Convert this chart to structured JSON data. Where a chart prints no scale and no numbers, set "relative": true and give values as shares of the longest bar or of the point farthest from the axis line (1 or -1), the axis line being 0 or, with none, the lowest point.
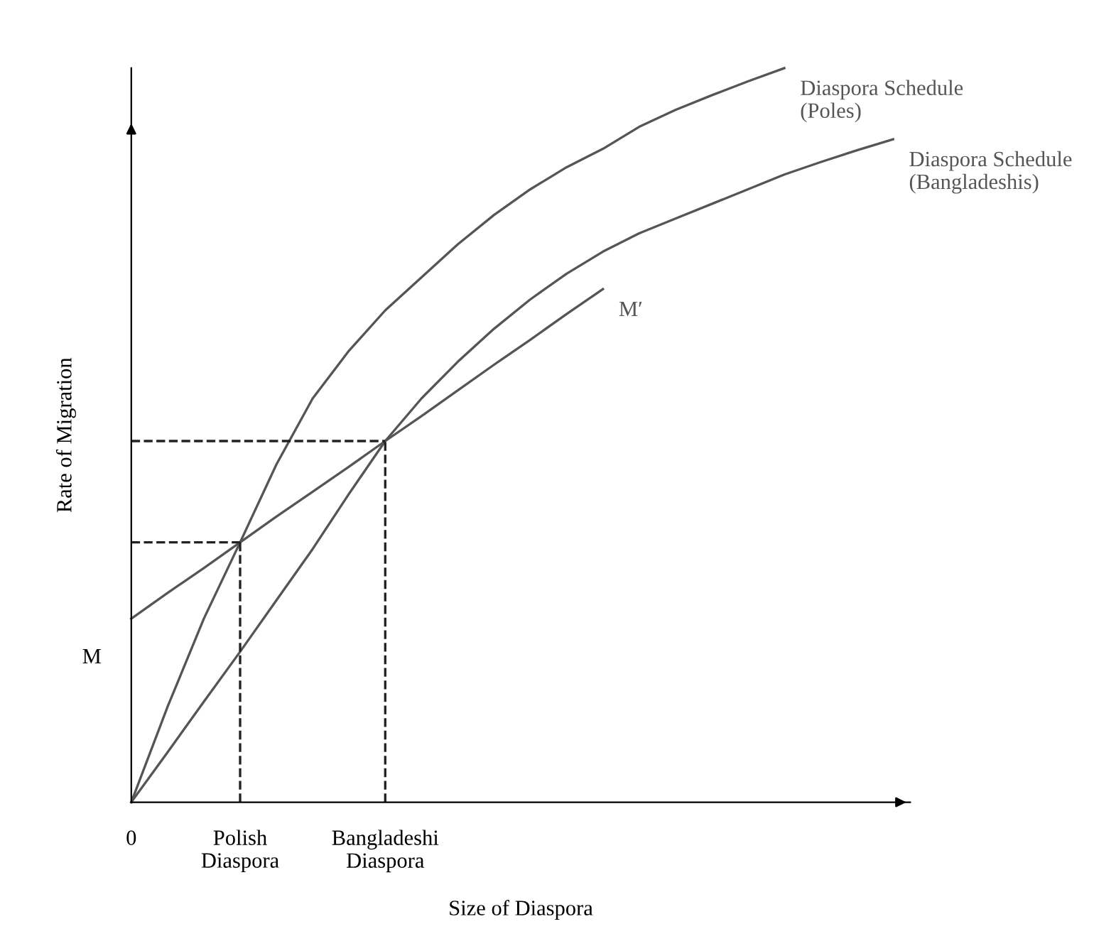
{
  "chart_data": {
    "type": "line",
    "relative": true,
    "xlabel": "Size of Diaspora",
    "ylabel": "Rate of Migration",
    "categories": [
      "0",
      null,
      null,
      "Polish\nDiaspora",
      null,
      null,
      null,
      "Bangladeshi\nDiaspora",
      null,
      null,
      null,
      null,
      null,
      null,
      null,
      null,
      null,
      null,
      null,
      null,
      null,
      null
    ],
    "annotations": [
      {
        "text": "M",
        "x": "0",
        "y": 0.25
      }
    ],
    "series": [
      {
        "name": "Diaspora Schedule\n(Poles)",
        "color": "#555555",
        "values": [
          0,
          0.13,
          0.25,
          0.354,
          0.46,
          0.55,
          0.615,
          0.67,
          0.715,
          0.76,
          0.8,
          0.835,
          0.865,
          0.89,
          0.92,
          0.943,
          0.963,
          0.982,
          1.0,
          null,
          null,
          null
        ]
      },
      {
        "name": "Diaspora Schedule\n(Bangladeshis)",
        "color": "#555555",
        "values": [
          0,
          0.068,
          0.137,
          0.205,
          0.275,
          0.345,
          0.42,
          0.492,
          0.55,
          0.6,
          0.645,
          0.685,
          0.72,
          0.75,
          0.775,
          0.795,
          0.815,
          0.835,
          0.855,
          0.872,
          0.888,
          0.903
        ]
      },
      {
        "name": "M′",
        "color": "#555555",
        "values": [
          0.25,
          0.285,
          0.319,
          0.354,
          0.389,
          0.423,
          0.457,
          0.492,
          0.526,
          0.561,
          0.596,
          0.63,
          0.665,
          0.699,
          null,
          null,
          null,
          null,
          null,
          null,
          null,
          null
        ]
      }
    ],
    "ref_lines": [
      {
        "axis": "y",
        "value": 0.354,
        "color": "#222222",
        "line_style": "dashed"
      },
      {
        "axis": "y",
        "value": 0.492,
        "color": "#222222",
        "line_style": "dashed"
      },
      {
        "axis": "x",
        "value": "Polish\nDiaspora",
        "color": "#222222",
        "line_style": "dashed"
      },
      {
        "axis": "x",
        "value": "Bangladeshi\nDiaspora",
        "color": "#222222",
        "line_style": "dashed"
      }
    ]
  }
}
